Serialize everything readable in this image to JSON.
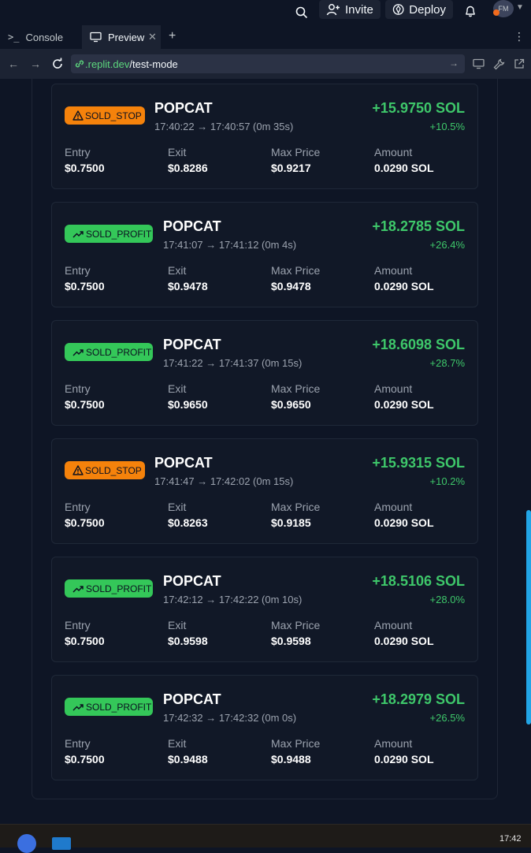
{
  "topbar": {
    "invite_label": "Invite",
    "deploy_label": "Deploy",
    "avatar_initials": "FM"
  },
  "tabs": [
    {
      "label": "Console",
      "icon": "terminal-icon"
    },
    {
      "label": "Preview",
      "icon": "monitor-icon"
    }
  ],
  "urlbar": {
    "host": ".replit.dev",
    "path": "/test-mode"
  },
  "trades": [
    {
      "status": "SOLD_STOP",
      "kind": "stop",
      "token": "POPCAT",
      "time": "17:40:22 → 17:40:57 (0m 35s)",
      "pnl": "+15.9750 SOL",
      "pct": "+10.5%",
      "entry": "$0.7500",
      "exit": "$0.8286",
      "max_price": "$0.9217",
      "amount": "0.0290 SOL"
    },
    {
      "status": "SOLD_PROFIT",
      "kind": "profit",
      "token": "POPCAT",
      "time": "17:41:07 → 17:41:12 (0m 4s)",
      "pnl": "+18.2785 SOL",
      "pct": "+26.4%",
      "entry": "$0.7500",
      "exit": "$0.9478",
      "max_price": "$0.9478",
      "amount": "0.0290 SOL"
    },
    {
      "status": "SOLD_PROFIT",
      "kind": "profit",
      "token": "POPCAT",
      "time": "17:41:22 → 17:41:37 (0m 15s)",
      "pnl": "+18.6098 SOL",
      "pct": "+28.7%",
      "entry": "$0.7500",
      "exit": "$0.9650",
      "max_price": "$0.9650",
      "amount": "0.0290 SOL"
    },
    {
      "status": "SOLD_STOP",
      "kind": "stop",
      "token": "POPCAT",
      "time": "17:41:47 → 17:42:02 (0m 15s)",
      "pnl": "+15.9315 SOL",
      "pct": "+10.2%",
      "entry": "$0.7500",
      "exit": "$0.8263",
      "max_price": "$0.9185",
      "amount": "0.0290 SOL"
    },
    {
      "status": "SOLD_PROFIT",
      "kind": "profit",
      "token": "POPCAT",
      "time": "17:42:12 → 17:42:22 (0m 10s)",
      "pnl": "+18.5106 SOL",
      "pct": "+28.0%",
      "entry": "$0.7500",
      "exit": "$0.9598",
      "max_price": "$0.9598",
      "amount": "0.0290 SOL"
    },
    {
      "status": "SOLD_PROFIT",
      "kind": "profit",
      "token": "POPCAT",
      "time": "17:42:32 → 17:42:32 (0m 0s)",
      "pnl": "+18.2979 SOL",
      "pct": "+26.5%",
      "entry": "$0.7500",
      "exit": "$0.9488",
      "max_price": "$0.9488",
      "amount": "0.0290 SOL"
    }
  ],
  "labels": {
    "entry": "Entry",
    "exit": "Exit",
    "max_price": "Max Price",
    "amount": "Amount"
  },
  "colors": {
    "stop": "#f5820b",
    "profit": "#34c759",
    "positive": "#3ec76a"
  },
  "taskbar": {
    "clock": "17:42"
  }
}
